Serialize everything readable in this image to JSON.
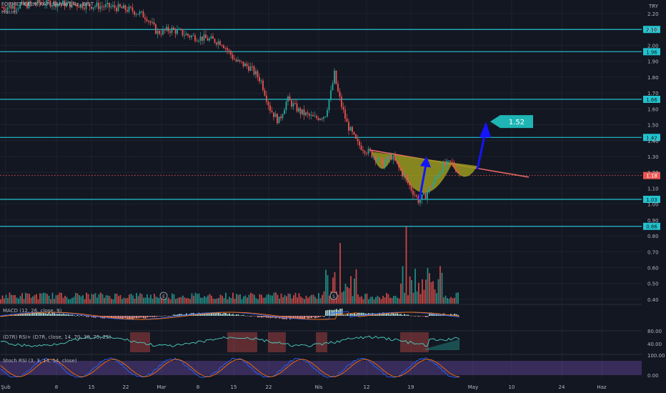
{
  "header": {
    "symbol_line": "FORMET CELIK KAPI SANAYI, 4s, BIST",
    "volume_label": "Hacim",
    "currency": "TRY"
  },
  "panes": {
    "macd_label": "MACD (12, 26, close, 9)",
    "rsi_label": "(D7R) RSI+ (D7R, close, 14, 70, 30, 75, 25)",
    "stoch_label": "Stoch RSI (3, 3, 14, 14, close)"
  },
  "chart_data": {
    "type": "candlestick",
    "y_axis": {
      "ticks": [
        2.2,
        2.1,
        2.0,
        1.9,
        1.8,
        1.7,
        1.6,
        1.5,
        1.4,
        1.3,
        1.2,
        1.1,
        1.0,
        0.9,
        0.8,
        0.7,
        0.6,
        0.5,
        0.4
      ]
    },
    "x_axis": {
      "ticks": [
        "Şub",
        "8",
        "15",
        "22",
        "Mar",
        "8",
        "15",
        "22",
        "Nis",
        "12",
        "19",
        "May",
        "10",
        "24",
        "Haz"
      ]
    },
    "levels": [
      {
        "value": 2.1,
        "label": "2.10"
      },
      {
        "value": 1.96,
        "label": "1.96"
      },
      {
        "value": 1.66,
        "label": "1.66"
      },
      {
        "value": 1.42,
        "label": "1.42"
      },
      {
        "value": 1.03,
        "label": "1.03"
      },
      {
        "value": 0.86,
        "label": "0.86"
      }
    ],
    "last_price": {
      "value": 1.18,
      "label": "1.18"
    },
    "target": {
      "value": 1.52,
      "label": "1.52"
    },
    "pattern": "cup-and-handle",
    "pane_axes": {
      "rsi_ticks": [
        "80.00",
        "40.00"
      ],
      "stoch_ticks": [
        "100.00",
        "0.00"
      ]
    },
    "event_markers": [
      "E",
      "S"
    ],
    "colors": {
      "up": "#26a69a",
      "down": "#ef5350",
      "level": "#22c3cf",
      "trendline": "#f06a6a",
      "cup_fill": "#9a9a1e",
      "arrow": "#1414ff",
      "target_box": "#1fb5b5"
    }
  }
}
